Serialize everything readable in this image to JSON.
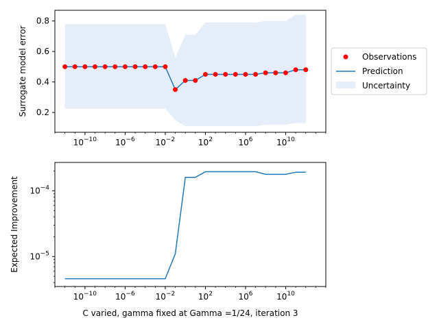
{
  "chart_data": [
    {
      "type": "line",
      "xscale": "log",
      "xlim": [
        1e-13,
        100000000000000.0
      ],
      "ylim": [
        0.07,
        0.87
      ],
      "ylabel": "Surrogate model error",
      "xlabel": "",
      "grid": false,
      "legend_position": "right",
      "legend": [
        {
          "label": "Observations",
          "kind": "marker",
          "color": "#ff0000"
        },
        {
          "label": "Prediction",
          "kind": "line",
          "color": "#1f77b4"
        },
        {
          "label": "Uncertainty",
          "kind": "patch",
          "color": "#e5eef8"
        }
      ],
      "x_ticks": [
        {
          "base": "10",
          "exp": "−10",
          "value": 1e-10
        },
        {
          "base": "10",
          "exp": "−6",
          "value": 1e-06
        },
        {
          "base": "10",
          "exp": "−2",
          "value": 0.01
        },
        {
          "base": "10",
          "exp": "2",
          "value": 100.0
        },
        {
          "base": "10",
          "exp": "6",
          "value": 1000000.0
        },
        {
          "base": "10",
          "exp": "10",
          "value": 10000000000.0
        }
      ],
      "y_ticks": [
        {
          "label": "0.2",
          "value": 0.2
        },
        {
          "label": "0.4",
          "value": 0.4
        },
        {
          "label": "0.6",
          "value": 0.6
        },
        {
          "label": "0.8",
          "value": 0.8
        }
      ],
      "observations": {
        "x": [
          1e-12,
          1e-11,
          1e-10,
          1e-09,
          1e-08,
          1e-07,
          1e-06,
          1e-05,
          0.0001,
          0.001,
          0.01,
          0.1,
          1,
          10,
          100,
          1000,
          10000.0,
          100000.0,
          1000000.0,
          10000000.0,
          100000000.0,
          1000000000.0,
          10000000000.0,
          100000000000.0,
          1000000000000.0
        ],
        "y": [
          0.5,
          0.5,
          0.5,
          0.5,
          0.5,
          0.5,
          0.5,
          0.5,
          0.5,
          0.5,
          0.5,
          0.35,
          0.41,
          0.41,
          0.45,
          0.45,
          0.45,
          0.45,
          0.45,
          0.45,
          0.46,
          0.46,
          0.46,
          0.48,
          0.48
        ]
      },
      "series": [
        {
          "name": "Prediction",
          "x": [
            1e-12,
            1e-11,
            1e-10,
            1e-09,
            1e-08,
            1e-07,
            1e-06,
            1e-05,
            0.0001,
            0.001,
            0.01,
            0.1,
            1,
            10,
            100,
            1000,
            10000.0,
            100000.0,
            1000000.0,
            10000000.0,
            100000000.0,
            1000000000.0,
            10000000000.0,
            100000000000.0,
            1000000000000.0
          ],
          "y": [
            0.5,
            0.5,
            0.5,
            0.5,
            0.5,
            0.5,
            0.5,
            0.5,
            0.5,
            0.5,
            0.5,
            0.35,
            0.41,
            0.41,
            0.45,
            0.45,
            0.45,
            0.45,
            0.45,
            0.45,
            0.46,
            0.46,
            0.46,
            0.48,
            0.48
          ]
        }
      ],
      "uncertainty": {
        "x": [
          1e-12,
          1e-11,
          1e-10,
          1e-09,
          1e-08,
          1e-07,
          1e-06,
          1e-05,
          0.0001,
          0.001,
          0.01,
          0.1,
          1,
          10,
          100,
          1000,
          10000.0,
          100000.0,
          1000000.0,
          10000000.0,
          100000000.0,
          1000000000.0,
          10000000000.0,
          100000000000.0,
          1000000000000.0
        ],
        "lower": [
          0.225,
          0.225,
          0.225,
          0.225,
          0.225,
          0.225,
          0.225,
          0.225,
          0.225,
          0.225,
          0.225,
          0.15,
          0.11,
          0.11,
          0.11,
          0.11,
          0.11,
          0.11,
          0.11,
          0.11,
          0.12,
          0.12,
          0.12,
          0.13,
          0.13
        ],
        "upper": [
          0.78,
          0.78,
          0.78,
          0.78,
          0.78,
          0.78,
          0.78,
          0.78,
          0.78,
          0.78,
          0.78,
          0.56,
          0.71,
          0.71,
          0.79,
          0.79,
          0.79,
          0.79,
          0.79,
          0.79,
          0.8,
          0.8,
          0.8,
          0.84,
          0.84
        ]
      }
    },
    {
      "type": "line",
      "xscale": "log",
      "yscale": "log",
      "xlim": [
        1e-13,
        100000000000000.0
      ],
      "ylim": [
        3.5e-06,
        0.00027
      ],
      "ylabel": "Expected Improvement",
      "xlabel": "C varied, gamma fixed at Gamma =1/24, iteration 3",
      "grid": false,
      "x_ticks": [
        {
          "base": "10",
          "exp": "−10",
          "value": 1e-10
        },
        {
          "base": "10",
          "exp": "−6",
          "value": 1e-06
        },
        {
          "base": "10",
          "exp": "−2",
          "value": 0.01
        },
        {
          "base": "10",
          "exp": "2",
          "value": 100.0
        },
        {
          "base": "10",
          "exp": "6",
          "value": 1000000.0
        },
        {
          "base": "10",
          "exp": "10",
          "value": 10000000000.0
        }
      ],
      "y_ticks": [
        {
          "base": "10",
          "exp": "−4",
          "value": 0.0001
        },
        {
          "base": "10",
          "exp": "−5",
          "value": 1e-05
        }
      ],
      "series": [
        {
          "name": "",
          "x": [
            1e-12,
            1e-11,
            1e-10,
            1e-09,
            1e-08,
            1e-07,
            1e-06,
            1e-05,
            0.0001,
            0.001,
            0.01,
            0.1,
            1,
            10,
            100,
            1000,
            10000.0,
            100000.0,
            1000000.0,
            10000000.0,
            100000000.0,
            1000000000.0,
            10000000000.0,
            100000000000.0,
            1000000000000.0
          ],
          "y": [
            4.6e-06,
            4.6e-06,
            4.6e-06,
            4.6e-06,
            4.6e-06,
            4.6e-06,
            4.6e-06,
            4.6e-06,
            4.6e-06,
            4.6e-06,
            4.6e-06,
            1.1e-05,
            0.00016,
            0.00016,
            0.000195,
            0.000195,
            0.000195,
            0.000195,
            0.000195,
            0.000195,
            0.000178,
            0.000178,
            0.000178,
            0.000192,
            0.000192
          ]
        }
      ]
    }
  ],
  "colors": {
    "prediction": "#1f77b4",
    "observation": "#ff0000",
    "uncertainty": "#e5eef8",
    "frame": "#000000"
  }
}
